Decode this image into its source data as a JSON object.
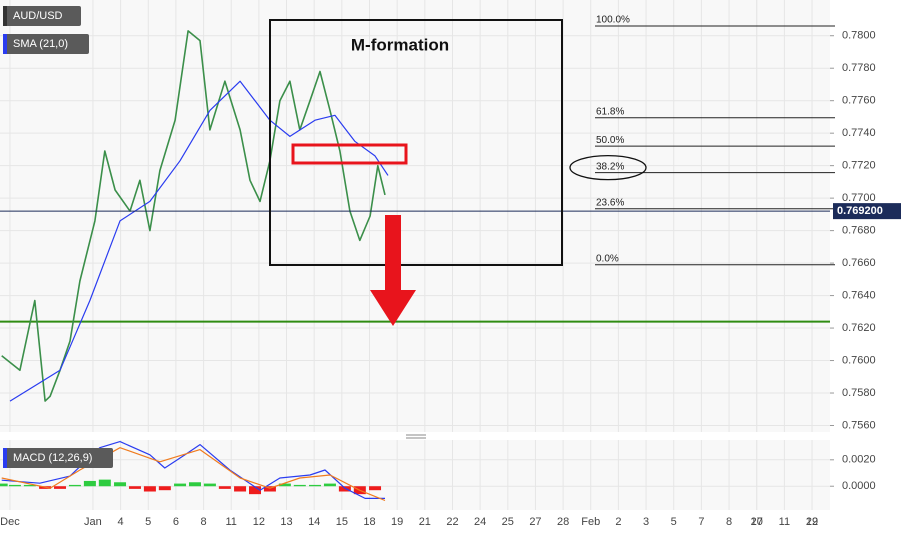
{
  "chart_data": [
    {
      "type": "line",
      "series": [
        {
          "name": "AUD/USD",
          "color": "#3b8f4a",
          "x": [
            -0.3,
            0.36,
            0.9,
            1.27,
            1.45,
            1.81,
            2.17,
            2.53,
            3.07,
            3.43,
            3.8,
            4.34,
            4.7,
            5.06,
            5.42,
            5.97,
            6.44,
            6.87,
            7.23,
            7.77,
            8.32,
            8.68,
            9.04,
            9.4,
            9.76,
            10.12,
            10.48,
            10.85,
            11.21,
            11.57,
            11.93,
            12.29,
            12.65,
            13.02,
            13.3,
            13.56
          ],
          "values": [
            0.7603,
            0.7594,
            0.7637,
            0.7575,
            0.7578,
            0.7594,
            0.7612,
            0.7649,
            0.7686,
            0.7729,
            0.7705,
            0.7692,
            0.7711,
            0.768,
            0.7717,
            0.7748,
            0.7803,
            0.7797,
            0.7742,
            0.7772,
            0.7742,
            0.7711,
            0.7698,
            0.7723,
            0.776,
            0.7772,
            0.7742,
            0.776,
            0.7778,
            0.7754,
            0.7729,
            0.7692,
            0.7674,
            0.7689,
            0.772,
            0.7702
          ]
        },
        {
          "name": "SMA (21,0)",
          "color": "#2a3cf0",
          "x": [
            0,
            1.81,
            2.89,
            3.98,
            5.06,
            6.15,
            7.23,
            8.32,
            9.4,
            10.12,
            11.03,
            11.75,
            12.47,
            13.2,
            13.67
          ],
          "values": [
            0.7575,
            0.7594,
            0.7637,
            0.7686,
            0.7698,
            0.7723,
            0.7754,
            0.7772,
            0.7748,
            0.7738,
            0.7748,
            0.7751,
            0.7735,
            0.7726,
            0.7714
          ]
        }
      ],
      "xlim": [
        -0.36,
        29.65
      ],
      "ylim": [
        0.7556,
        0.7822
      ],
      "yticks": [
        {
          "value": 0.756,
          "label": "0.7560"
        },
        {
          "value": 0.758,
          "label": "0.7580"
        },
        {
          "value": 0.76,
          "label": "0.7600"
        },
        {
          "value": 0.762,
          "label": "0.7620"
        },
        {
          "value": 0.764,
          "label": "0.7640"
        },
        {
          "value": 0.766,
          "label": "0.7660"
        },
        {
          "value": 0.768,
          "label": "0.7680"
        },
        {
          "value": 0.77,
          "label": "0.7700"
        },
        {
          "value": 0.772,
          "label": "0.7720"
        },
        {
          "value": 0.774,
          "label": "0.7740"
        },
        {
          "value": 0.776,
          "label": "0.7760"
        },
        {
          "value": 0.778,
          "label": "0.7780"
        },
        {
          "value": 0.78,
          "label": "0.7800"
        }
      ],
      "grid": true,
      "last_price": {
        "value": 0.7692,
        "label": "0.769200"
      },
      "support": {
        "value": 0.7624,
        "color": "#2f8c12"
      },
      "fibonacci": [
        {
          "value": 0.7806,
          "label": "100.0%"
        },
        {
          "value": 0.77495,
          "label": "61.8%"
        },
        {
          "value": 0.7732,
          "label": "50.0%"
        },
        {
          "value": 0.77157,
          "label": "38.2%"
        },
        {
          "value": 0.76935,
          "label": "23.6%"
        },
        {
          "value": 0.7659,
          "label": "0.0%"
        }
      ],
      "annotation": "M-formation"
    },
    {
      "type": "macd",
      "legend": "MACD (12,26,9)",
      "series": [
        {
          "color": "#2a3cf0",
          "x": [
            -0.3,
            1.08,
            2.17,
            3.25,
            3.98,
            5.06,
            5.6,
            6.33,
            6.87,
            7.95,
            9.04,
            9.76,
            10.85,
            11.39,
            12.11,
            12.84,
            13.56
          ],
          "values": [
            0.00046,
            0.00023,
            0.00077,
            0.00292,
            0.00338,
            0.00238,
            0.00138,
            0.00238,
            0.00315,
            0.00123,
            -0.00031,
            0.00062,
            0.00085,
            0.00123,
            -0.00015,
            -0.00092,
            -0.00092
          ]
        },
        {
          "color": "#f07b1e",
          "x": [
            -0.3,
            1.45,
            2.53,
            3.98,
            5.42,
            6.87,
            8.32,
            9.4,
            10.48,
            11.57,
            12.65,
            13.56
          ],
          "values": [
            0.00062,
            -0.00015,
            0.00123,
            0.00292,
            0.00185,
            0.00277,
            0.00062,
            -0.00015,
            0.00062,
            0.00085,
            -0.00031,
            -0.00108
          ]
        }
      ],
      "histogram": {
        "up_color": "#2ecc40",
        "down_color": "#ee1c1c",
        "x": [
          -0.3,
          0.18,
          0.72,
          1.27,
          1.81,
          2.35,
          2.89,
          3.43,
          3.98,
          4.52,
          5.06,
          5.6,
          6.15,
          6.69,
          7.23,
          7.77,
          8.32,
          8.86,
          9.4,
          9.94,
          10.48,
          11.03,
          11.57,
          12.11,
          12.65,
          13.2
        ],
        "values": [
          0.0002,
          0.0001,
          0.0001,
          -0.0002,
          -0.0002,
          0.0001,
          0.0004,
          0.0005,
          0.0003,
          -0.0002,
          -0.0004,
          -0.0003,
          0.0002,
          0.0003,
          0.0002,
          -0.0002,
          -0.0004,
          -0.0006,
          -0.0004,
          0.0002,
          0.0001,
          0.0001,
          0.0002,
          -0.0004,
          -0.0006,
          -0.0003
        ]
      },
      "xlim": [
        -0.36,
        29.65
      ],
      "ylim": [
        -0.0018,
        0.0035
      ],
      "yticks": [
        {
          "value": 0.002,
          "label": "0.0020"
        },
        {
          "value": 0,
          "label": "0.0000"
        }
      ],
      "xticks": [
        {
          "value": 0,
          "label": "Dec"
        },
        27,
        29,
        {
          "value": 3,
          "label": "Jan"
        },
        {
          "value": 4,
          "label": "4"
        },
        {
          "value": 5,
          "label": "5"
        },
        {
          "value": 6,
          "label": "6"
        },
        {
          "value": 7,
          "label": "8"
        },
        {
          "value": 8,
          "label": "11"
        },
        {
          "value": 9,
          "label": "12"
        },
        {
          "value": 10,
          "label": "13"
        },
        {
          "value": 11,
          "label": "14"
        },
        {
          "value": 12,
          "label": "15"
        },
        {
          "value": 13,
          "label": "18"
        },
        {
          "value": 14,
          "label": "19"
        },
        {
          "value": 15,
          "label": "21"
        },
        {
          "value": 16,
          "label": "22"
        },
        {
          "value": 17,
          "label": "24"
        },
        {
          "value": 18,
          "label": "25"
        },
        {
          "value": 19,
          "label": "27"
        },
        {
          "value": 20,
          "label": "28"
        },
        {
          "value": 21,
          "label": "Feb"
        },
        {
          "value": 22,
          "label": "2"
        },
        {
          "value": 23,
          "label": "3"
        },
        {
          "value": 24,
          "label": "5"
        },
        {
          "value": 25,
          "label": "7"
        },
        {
          "value": 26,
          "label": "8"
        },
        {
          "value": 27,
          "label": "10"
        },
        {
          "value": 28,
          "label": "11"
        },
        {
          "value": 29,
          "label": "12"
        }
      ],
      "grid": true
    }
  ]
}
